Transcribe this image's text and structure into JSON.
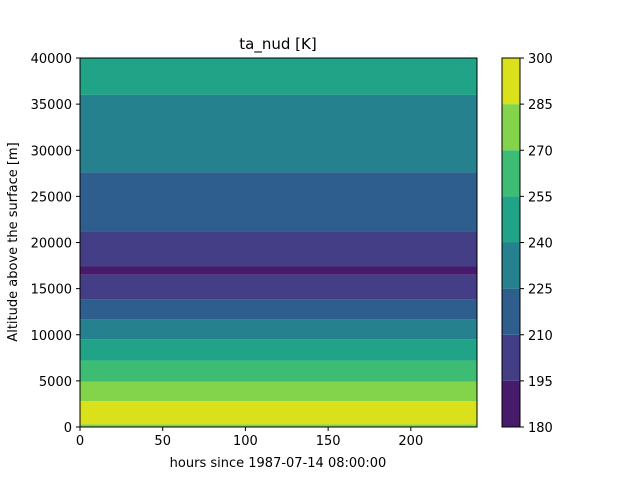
{
  "chart_data": {
    "type": "contourf",
    "title": "ta_nud [K]",
    "xlabel": "hours since 1987-07-14 08:00:00",
    "ylabel": "Altitude above the surface [m]",
    "xlim": [
      0,
      240
    ],
    "ylim": [
      0,
      40000
    ],
    "xticks": [
      "0",
      "50",
      "100",
      "150",
      "200"
    ],
    "xtick_values": [
      0,
      50,
      100,
      150,
      200
    ],
    "yticks": [
      "0",
      "5000",
      "10000",
      "15000",
      "20000",
      "25000",
      "30000",
      "35000",
      "40000"
    ],
    "ytick_values": [
      0,
      5000,
      10000,
      15000,
      20000,
      25000,
      30000,
      35000,
      40000
    ],
    "colorbar": {
      "levels": [
        180,
        195,
        210,
        225,
        240,
        255,
        270,
        285,
        300
      ],
      "tick_labels": [
        "180",
        "195",
        "210",
        "225",
        "240",
        "255",
        "270",
        "285",
        "300"
      ],
      "colors": [
        "#481a6c",
        "#433e85",
        "#2d5e8d",
        "#26818e",
        "#20a386",
        "#3dbc74",
        "#84d44b",
        "#dae11a"
      ]
    },
    "bands": [
      {
        "y0": 0,
        "y1": 300,
        "level_index": 6
      },
      {
        "y0": 300,
        "y1": 2800,
        "level_index": 7
      },
      {
        "y0": 2800,
        "y1": 4900,
        "level_index": 6
      },
      {
        "y0": 4900,
        "y1": 7200,
        "level_index": 5
      },
      {
        "y0": 7200,
        "y1": 9500,
        "level_index": 4
      },
      {
        "y0": 9500,
        "y1": 11700,
        "level_index": 3
      },
      {
        "y0": 11700,
        "y1": 13800,
        "level_index": 2
      },
      {
        "y0": 13800,
        "y1": 16500,
        "level_index": 1
      },
      {
        "y0": 16500,
        "y1": 17400,
        "level_index": 0
      },
      {
        "y0": 17400,
        "y1": 21200,
        "level_index": 1
      },
      {
        "y0": 21200,
        "y1": 27600,
        "level_index": 2
      },
      {
        "y0": 27600,
        "y1": 36000,
        "level_index": 3
      },
      {
        "y0": 36000,
        "y1": 40000,
        "level_index": 4
      }
    ]
  }
}
